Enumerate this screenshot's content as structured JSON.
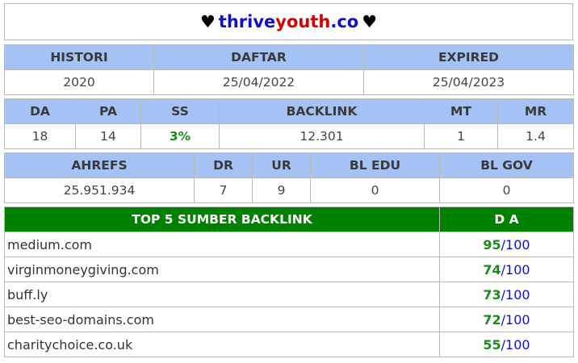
{
  "header": {
    "heart_left": "♥",
    "domain_part1": "thrive",
    "domain_part2": "youth",
    "domain_part3": ".co",
    "heart_right": "♥"
  },
  "history": {
    "headers": [
      "HISTORI",
      "DAFTAR",
      "EXPIRED"
    ],
    "values": [
      "2020",
      "25/04/2022",
      "25/04/2023"
    ]
  },
  "metrics": {
    "headers": [
      "DA",
      "PA",
      "SS",
      "BACKLINK",
      "MT",
      "MR"
    ],
    "values": [
      "18",
      "14",
      "3%",
      "12.301",
      "1",
      "1.4"
    ]
  },
  "ahrefs": {
    "headers": [
      "AHREFS",
      "DR",
      "UR",
      "BL EDU",
      "BL GOV"
    ],
    "values": [
      "25.951.934",
      "7",
      "9",
      "0",
      "0"
    ]
  },
  "backlinks": {
    "header_source": "TOP 5 SUMBER BACKLINK",
    "header_da": "D A",
    "da_max": "100",
    "da_sep": "/",
    "rows": [
      {
        "domain": "medium.com",
        "da": "95"
      },
      {
        "domain": "virginmoneygiving.com",
        "da": "74"
      },
      {
        "domain": "buff.ly",
        "da": "73"
      },
      {
        "domain": "best-seo-domains.com",
        "da": "72"
      },
      {
        "domain": "charitychoice.co.uk",
        "da": "55"
      }
    ]
  }
}
